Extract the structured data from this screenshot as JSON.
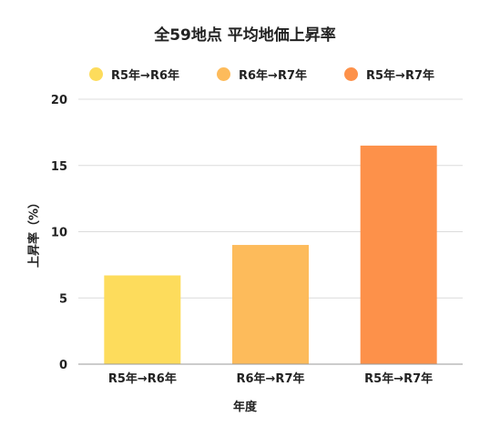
{
  "chart_data": {
    "type": "bar",
    "title": "全59地点 平均地価上昇率",
    "xlabel": "年度",
    "ylabel": "上昇率（%）",
    "categories": [
      "R5年→R6年",
      "R6年→R7年",
      "R5年→R7年"
    ],
    "values": [
      6.7,
      9.0,
      16.5
    ],
    "colors": [
      "#FDDC5C",
      "#FDBB5B",
      "#FD914A"
    ],
    "legend": {
      "position": "top",
      "entries": [
        "R5年→R6年",
        "R6年→R7年",
        "R5年→R7年"
      ]
    },
    "ylim": [
      0,
      20
    ],
    "yticks": [
      "0",
      "5",
      "10",
      "15",
      "20"
    ],
    "grid": true
  }
}
